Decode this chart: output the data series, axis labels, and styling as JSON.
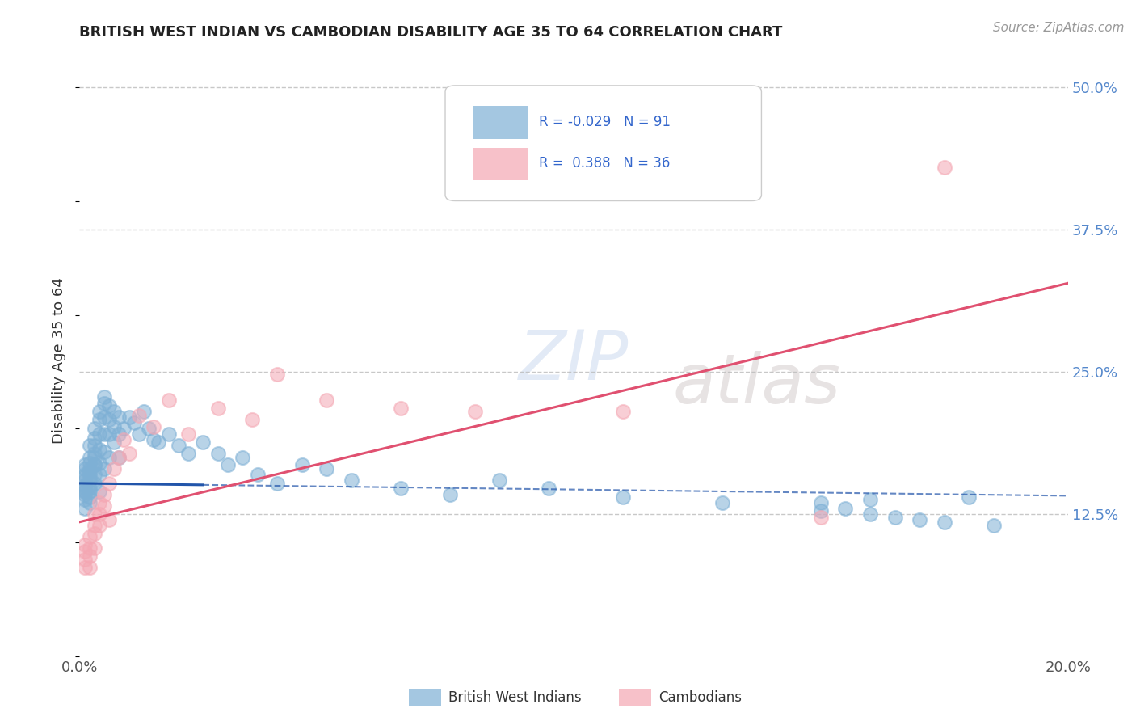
{
  "title": "BRITISH WEST INDIAN VS CAMBODIAN DISABILITY AGE 35 TO 64 CORRELATION CHART",
  "source": "Source: ZipAtlas.com",
  "ylabel": "Disability Age 35 to 64",
  "xlim": [
    0.0,
    0.2
  ],
  "ylim": [
    0.0,
    0.52
  ],
  "yticks_right": [
    0.125,
    0.25,
    0.375,
    0.5
  ],
  "yticklabels_right": [
    "12.5%",
    "25.0%",
    "37.5%",
    "50.0%"
  ],
  "legend_bottom_labels": [
    "British West Indians",
    "Cambodians"
  ],
  "blue_color": "#7EB0D5",
  "pink_color": "#F4A7B3",
  "blue_line_color": "#2255AA",
  "pink_line_color": "#E05070",
  "background_color": "#FFFFFF",
  "grid_color": "#BBBBBB",
  "blue_trend_x": [
    0.0,
    0.2
  ],
  "blue_trend_y": [
    0.152,
    0.141
  ],
  "pink_trend_x": [
    0.0,
    0.2
  ],
  "pink_trend_y": [
    0.118,
    0.328
  ],
  "blue_scatter_x": [
    0.001,
    0.001,
    0.001,
    0.001,
    0.001,
    0.001,
    0.001,
    0.001,
    0.001,
    0.001,
    0.001,
    0.001,
    0.002,
    0.002,
    0.002,
    0.002,
    0.002,
    0.002,
    0.002,
    0.002,
    0.002,
    0.002,
    0.002,
    0.003,
    0.003,
    0.003,
    0.003,
    0.003,
    0.003,
    0.003,
    0.003,
    0.003,
    0.004,
    0.004,
    0.004,
    0.004,
    0.004,
    0.004,
    0.004,
    0.005,
    0.005,
    0.005,
    0.005,
    0.005,
    0.005,
    0.006,
    0.006,
    0.006,
    0.006,
    0.007,
    0.007,
    0.007,
    0.008,
    0.008,
    0.008,
    0.009,
    0.01,
    0.011,
    0.012,
    0.013,
    0.014,
    0.015,
    0.016,
    0.018,
    0.02,
    0.022,
    0.025,
    0.028,
    0.03,
    0.033,
    0.036,
    0.04,
    0.045,
    0.05,
    0.055,
    0.065,
    0.075,
    0.085,
    0.095,
    0.11,
    0.13,
    0.15,
    0.165,
    0.175,
    0.185,
    0.17,
    0.16,
    0.155,
    0.15,
    0.16,
    0.18
  ],
  "blue_scatter_y": [
    0.155,
    0.15,
    0.148,
    0.145,
    0.142,
    0.16,
    0.158,
    0.165,
    0.138,
    0.13,
    0.145,
    0.168,
    0.162,
    0.17,
    0.155,
    0.148,
    0.14,
    0.175,
    0.165,
    0.158,
    0.185,
    0.145,
    0.135,
    0.175,
    0.168,
    0.16,
    0.152,
    0.192,
    0.185,
    0.178,
    0.2,
    0.168,
    0.145,
    0.208,
    0.195,
    0.182,
    0.17,
    0.215,
    0.16,
    0.222,
    0.21,
    0.195,
    0.18,
    0.165,
    0.228,
    0.22,
    0.208,
    0.195,
    0.175,
    0.215,
    0.202,
    0.188,
    0.21,
    0.195,
    0.175,
    0.2,
    0.21,
    0.205,
    0.195,
    0.215,
    0.2,
    0.19,
    0.188,
    0.195,
    0.185,
    0.178,
    0.188,
    0.178,
    0.168,
    0.175,
    0.16,
    0.152,
    0.168,
    0.165,
    0.155,
    0.148,
    0.142,
    0.155,
    0.148,
    0.14,
    0.135,
    0.128,
    0.122,
    0.118,
    0.115,
    0.12,
    0.125,
    0.13,
    0.135,
    0.138,
    0.14
  ],
  "pink_scatter_x": [
    0.001,
    0.001,
    0.001,
    0.001,
    0.002,
    0.002,
    0.002,
    0.002,
    0.003,
    0.003,
    0.003,
    0.003,
    0.004,
    0.004,
    0.004,
    0.005,
    0.005,
    0.006,
    0.006,
    0.007,
    0.008,
    0.009,
    0.01,
    0.012,
    0.015,
    0.018,
    0.022,
    0.028,
    0.035,
    0.04,
    0.05,
    0.065,
    0.08,
    0.11,
    0.15,
    0.175
  ],
  "pink_scatter_y": [
    0.098,
    0.092,
    0.085,
    0.078,
    0.105,
    0.095,
    0.088,
    0.078,
    0.115,
    0.125,
    0.108,
    0.095,
    0.135,
    0.125,
    0.115,
    0.142,
    0.132,
    0.152,
    0.12,
    0.165,
    0.175,
    0.19,
    0.178,
    0.212,
    0.202,
    0.225,
    0.195,
    0.218,
    0.208,
    0.248,
    0.225,
    0.218,
    0.215,
    0.215,
    0.122,
    0.43
  ]
}
